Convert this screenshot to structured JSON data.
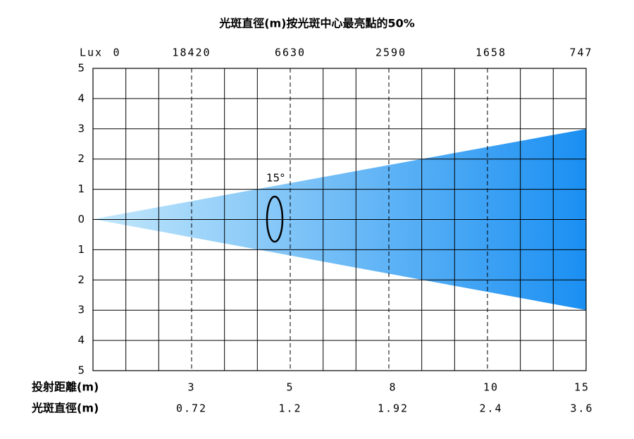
{
  "title": "光斑直徑(m)按光斑中心最亮點的50%",
  "lux": {
    "label": "Lux",
    "values": [
      0,
      18420,
      6630,
      2590,
      1658,
      747
    ]
  },
  "y_labels": [
    5,
    4,
    3,
    2,
    1,
    0,
    1,
    2,
    3,
    4,
    5
  ],
  "angle": "15°",
  "distance": {
    "label": "投射距離(m)",
    "values": [
      3,
      5,
      8,
      10,
      15
    ]
  },
  "diameter": {
    "label": "光斑直徑(m)",
    "values": [
      0.72,
      1.2,
      1.92,
      2.4,
      3.6
    ]
  }
}
